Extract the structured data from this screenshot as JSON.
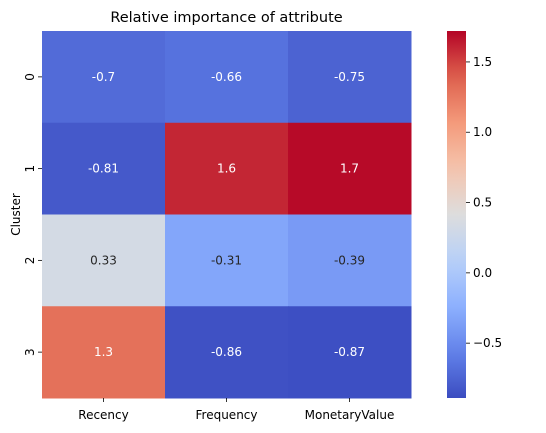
{
  "chart_data": {
    "type": "heatmap",
    "title": "Relative importance of attribute",
    "xlabel": "",
    "ylabel": "Cluster",
    "x_categories": [
      "Recency",
      "Frequency",
      "MonetaryValue"
    ],
    "y_categories": [
      "0",
      "1",
      "2",
      "3"
    ],
    "values": [
      [
        -0.7,
        -0.66,
        -0.75
      ],
      [
        -0.81,
        1.6,
        1.7
      ],
      [
        0.33,
        -0.31,
        -0.39
      ],
      [
        1.3,
        -0.86,
        -0.87
      ]
    ],
    "annotations": [
      [
        "-0.7",
        "-0.66",
        "-0.75"
      ],
      [
        "-0.81",
        "1.6",
        "1.7"
      ],
      [
        "0.33",
        "-0.31",
        "-0.39"
      ],
      [
        "1.3",
        "-0.86",
        "-0.87"
      ]
    ],
    "colormap": "coolwarm",
    "vmin": -0.89,
    "vmax": 1.72,
    "colorbar_ticks": [
      1.5,
      1.0,
      0.5,
      0.0,
      -0.5
    ],
    "colorbar_tick_labels": [
      "1.5",
      "1.0",
      "0.5",
      "0.0",
      "−0.5"
    ]
  }
}
